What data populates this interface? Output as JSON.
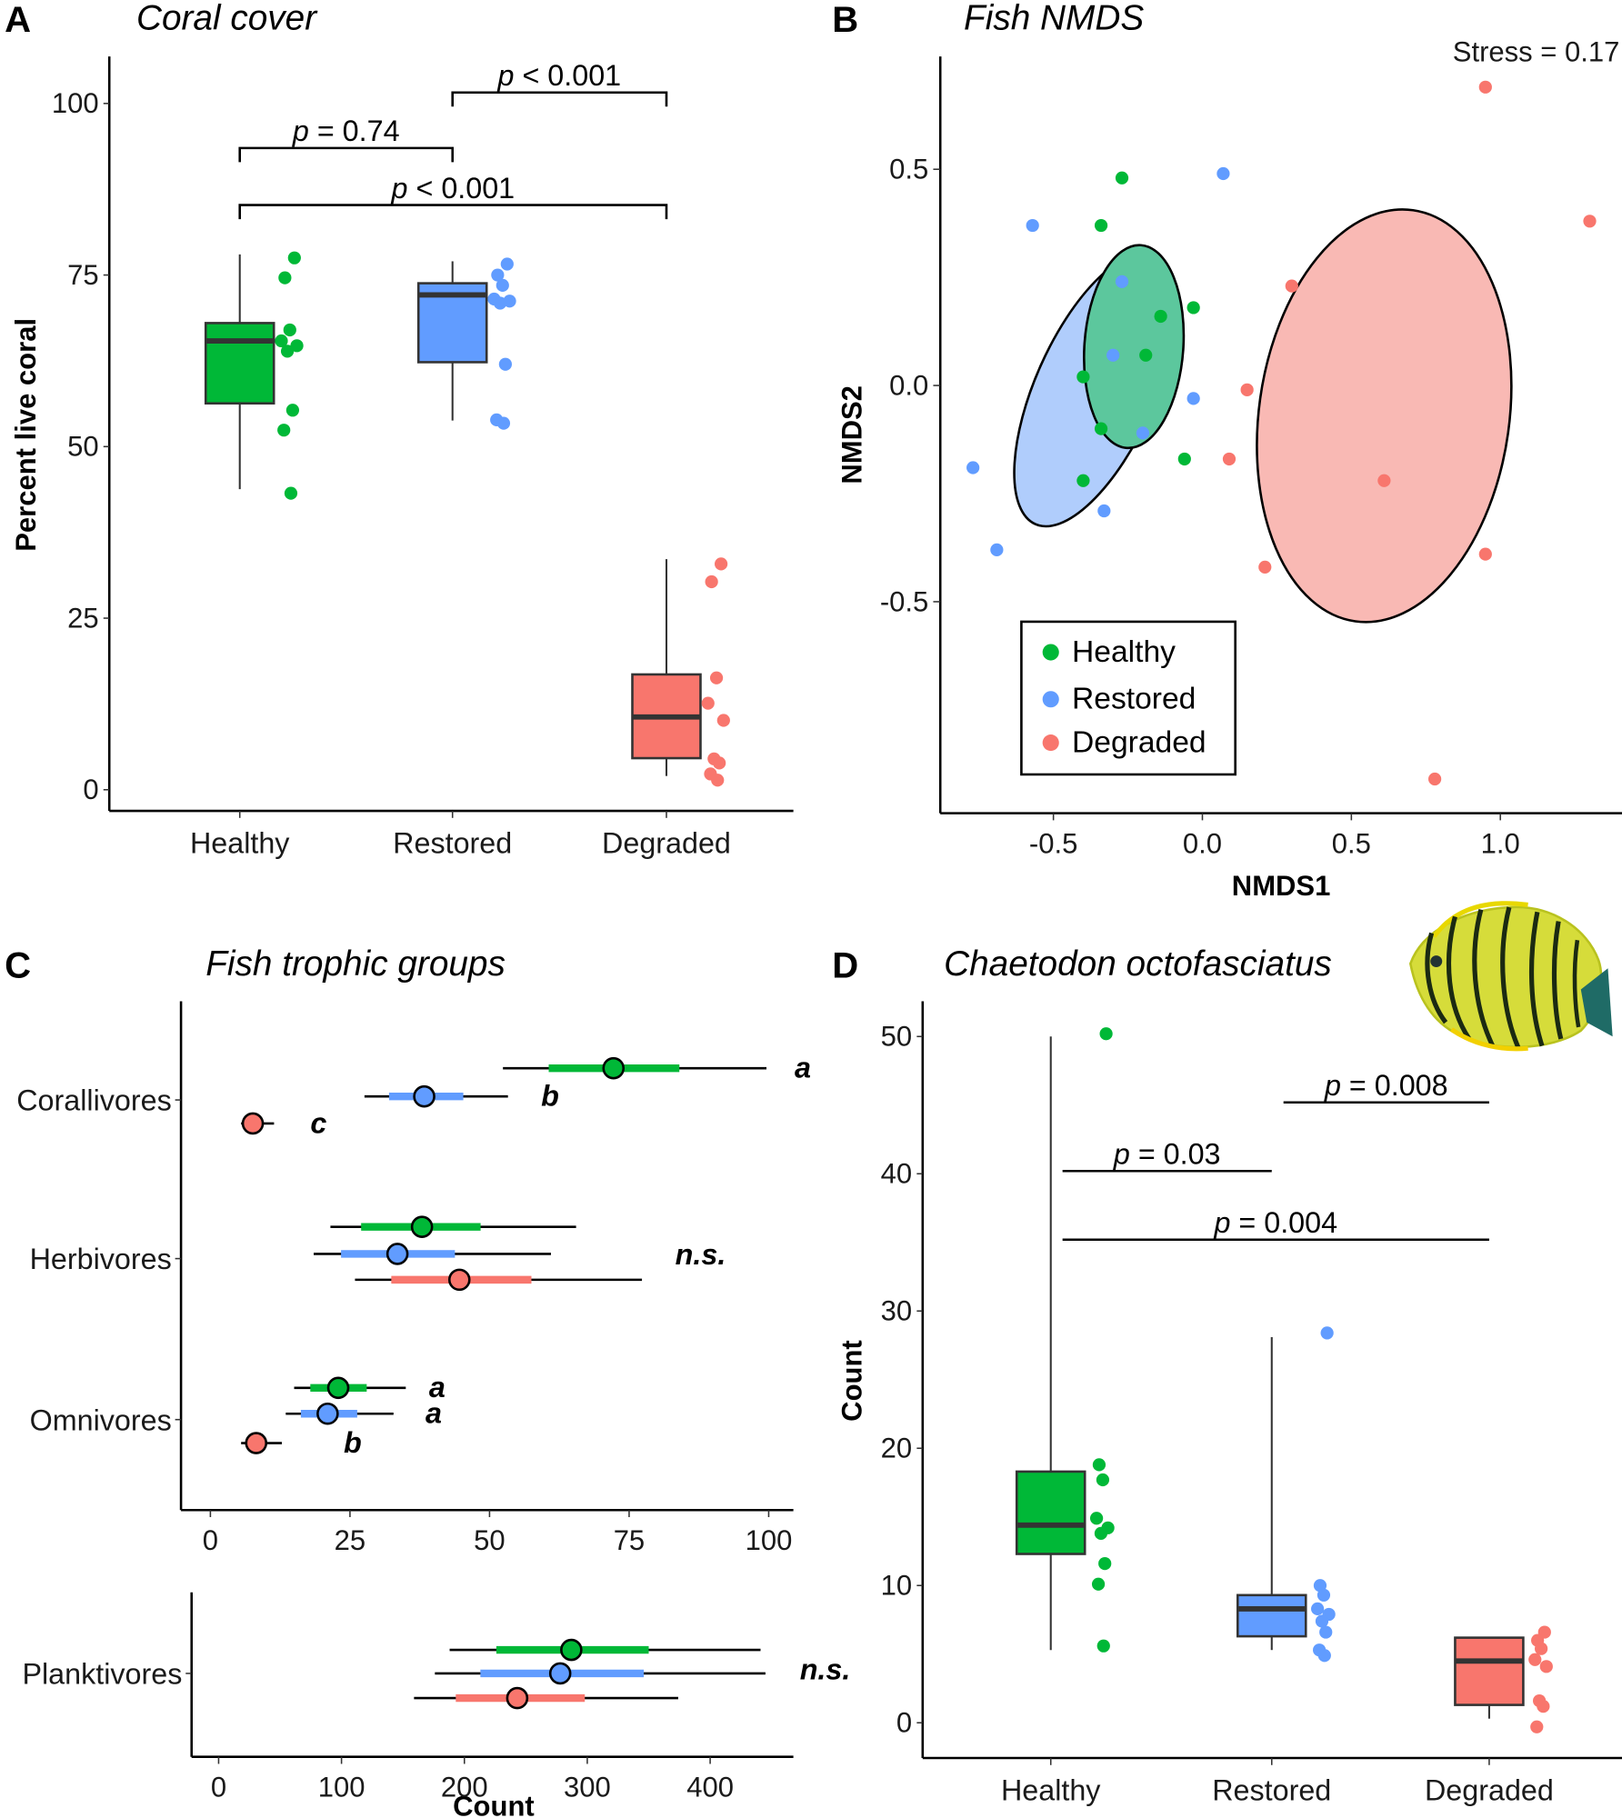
{
  "groups": [
    "Healthy",
    "Restored",
    "Degraded"
  ],
  "colors": {
    "Healthy": "#00b837",
    "Restored": "#619cff",
    "Degraded": "#f8766d",
    "Healthy_ellipse": "#5cc79d",
    "Restored_ellipse": "#b0cdfc",
    "Degraded_ellipse": "#f9b9b4",
    "median": "#333333"
  },
  "chart_data": [
    {
      "panel": "A",
      "type": "box",
      "title": "Coral cover",
      "xlabel": "",
      "ylabel": "Percent live coral",
      "ylim": [
        0,
        100
      ],
      "yticks": [
        0,
        25,
        50,
        75,
        100
      ],
      "categories": [
        "Healthy",
        "Restored",
        "Degraded"
      ],
      "boxes": [
        {
          "group": "Healthy",
          "whisker_low": 43.8,
          "q1": 56.3,
          "median": 65.4,
          "q3": 68,
          "whisker_high": 78,
          "points": [
            77.5,
            74.6,
            67,
            65.4,
            64.7,
            63.9,
            55.3,
            52.4,
            43.2
          ]
        },
        {
          "group": "Restored",
          "whisker_low": 53.8,
          "q1": 62.3,
          "median": 72.1,
          "q3": 73.8,
          "whisker_high": 77,
          "points": [
            76.6,
            75,
            73.5,
            71.5,
            71.2,
            70.9,
            62,
            53.9,
            53.4
          ]
        },
        {
          "group": "Degraded",
          "whisker_low": 2,
          "q1": 4.6,
          "median": 10.6,
          "q3": 16.8,
          "whisker_high": 33.6,
          "points": [
            32.9,
            30.3,
            16.3,
            12.6,
            10.1,
            4.5,
            3.9,
            2.3,
            1.4
          ]
        }
      ],
      "comparisons": [
        {
          "from": "Healthy",
          "to": "Restored",
          "label_p": "p",
          "label_rest": " = 0.74",
          "y": 93.5
        },
        {
          "from": "Restored",
          "to": "Degraded",
          "label_p": "p",
          "label_rest": " < 0.001",
          "y": 101.6
        },
        {
          "from": "Healthy",
          "to": "Degraded",
          "label_p": "p",
          "label_rest": " < 0.001",
          "y": 85.2
        }
      ]
    },
    {
      "panel": "B",
      "type": "scatter",
      "title": "Fish NMDS",
      "xlabel": "NMDS1",
      "ylabel": "NMDS2",
      "xticks": [
        -0.5,
        0.0,
        0.5,
        1.0
      ],
      "xtick_labels": [
        "-0.5",
        "0.0",
        "0.5",
        "1.0"
      ],
      "yticks": [
        -0.5,
        0.0,
        0.5
      ],
      "ytick_labels": [
        "-0.5",
        "0.0",
        "0.5"
      ],
      "annotation": "Stress = 0.17",
      "legend": {
        "position": "bottom-left",
        "entries": [
          "Healthy",
          "Restored",
          "Degraded"
        ]
      },
      "series": [
        {
          "name": "Healthy",
          "points": [
            [
              -0.27,
              0.48
            ],
            [
              -0.34,
              0.37
            ],
            [
              -0.14,
              0.16
            ],
            [
              -0.03,
              0.18
            ],
            [
              -0.19,
              0.07
            ],
            [
              -0.4,
              0.02
            ],
            [
              -0.34,
              -0.1
            ],
            [
              -0.06,
              -0.17
            ],
            [
              -0.4,
              -0.22
            ]
          ],
          "ellipse": {
            "cx": -0.23,
            "cy": 0.09,
            "rx": 0.166,
            "ry": 0.235,
            "angle_deg": 4
          }
        },
        {
          "name": "Restored",
          "points": [
            [
              0.07,
              0.49
            ],
            [
              -0.57,
              0.37
            ],
            [
              -0.27,
              0.24
            ],
            [
              -0.3,
              0.07
            ],
            [
              -0.03,
              -0.03
            ],
            [
              -0.2,
              -0.11
            ],
            [
              -0.77,
              -0.19
            ],
            [
              -0.33,
              -0.29
            ],
            [
              -0.69,
              -0.38
            ]
          ],
          "ellipse": {
            "cx": -0.36,
            "cy": -0.01,
            "rx": 0.2,
            "ry": 0.34,
            "angle_deg": 24
          }
        },
        {
          "name": "Degraded",
          "points": [
            [
              0.95,
              0.69
            ],
            [
              1.3,
              0.38
            ],
            [
              0.3,
              0.23
            ],
            [
              0.15,
              -0.01
            ],
            [
              0.09,
              -0.17
            ],
            [
              0.61,
              -0.22
            ],
            [
              0.95,
              -0.39
            ],
            [
              0.21,
              -0.42
            ],
            [
              0.78,
              -0.91
            ]
          ],
          "ellipse": {
            "cx": 0.61,
            "cy": -0.07,
            "rx": 0.42,
            "ry": 0.48,
            "angle_deg": 8
          }
        }
      ]
    },
    {
      "panel": "C",
      "type": "pointrange",
      "title": "Fish trophic groups",
      "xlabel": "Count",
      "facets": [
        {
          "name": "top",
          "xlim": [
            -5,
            105
          ],
          "xticks": [
            0,
            25,
            50,
            75,
            100
          ],
          "categories": [
            {
              "name": "Corallivores",
              "sig": [
                {
                  "group": "Healthy",
                  "label": "a"
                },
                {
                  "group": "Restored",
                  "label": "b"
                },
                {
                  "group": "Degraded",
                  "label": "c"
                }
              ],
              "values": [
                {
                  "group": "Healthy",
                  "mean": 72.2,
                  "inner": [
                    60.6,
                    84
                  ],
                  "outer": [
                    52.4,
                    99.6
                  ]
                },
                {
                  "group": "Restored",
                  "mean": 38.3,
                  "inner": [
                    32,
                    45.3
                  ],
                  "outer": [
                    27.6,
                    53.3
                  ]
                },
                {
                  "group": "Degraded",
                  "mean": 7.6,
                  "inner": [
                    6,
                    9
                  ],
                  "outer": [
                    5.5,
                    11.4
                  ]
                }
              ]
            },
            {
              "name": "Herbivores",
              "sig_all": "n.s.",
              "values": [
                {
                  "group": "Healthy",
                  "mean": 37.9,
                  "inner": [
                    27,
                    48.4
                  ],
                  "outer": [
                    21.5,
                    65.5
                  ]
                },
                {
                  "group": "Restored",
                  "mean": 33.5,
                  "inner": [
                    23.4,
                    43.8
                  ],
                  "outer": [
                    18.5,
                    61
                  ]
                },
                {
                  "group": "Degraded",
                  "mean": 44.6,
                  "inner": [
                    32.4,
                    57.5
                  ],
                  "outer": [
                    25.9,
                    77.3
                  ]
                }
              ]
            },
            {
              "name": "Omnivores",
              "sig": [
                {
                  "group": "Healthy",
                  "label": "a"
                },
                {
                  "group": "Restored",
                  "label": "a"
                },
                {
                  "group": "Degraded",
                  "label": "b"
                }
              ],
              "values": [
                {
                  "group": "Healthy",
                  "mean": 22.9,
                  "inner": [
                    17.9,
                    28
                  ],
                  "outer": [
                    15,
                    35
                  ]
                },
                {
                  "group": "Restored",
                  "mean": 21,
                  "inner": [
                    16.2,
                    26.3
                  ],
                  "outer": [
                    13.5,
                    32.8
                  ]
                },
                {
                  "group": "Degraded",
                  "mean": 8.2,
                  "inner": [
                    7,
                    9.5
                  ],
                  "outer": [
                    5.5,
                    12.8
                  ]
                }
              ]
            }
          ]
        },
        {
          "name": "bottom",
          "xlim": [
            -20,
            465
          ],
          "xticks": [
            0,
            100,
            200,
            300,
            400
          ],
          "categories": [
            {
              "name": "Planktivores",
              "sig_all": "n.s.",
              "values": [
                {
                  "group": "Healthy",
                  "mean": 287,
                  "inner": [
                    226,
                    350
                  ],
                  "outer": [
                    188,
                    441
                  ]
                },
                {
                  "group": "Restored",
                  "mean": 278,
                  "inner": [
                    213,
                    346
                  ],
                  "outer": [
                    176,
                    445
                  ]
                },
                {
                  "group": "Degraded",
                  "mean": 243,
                  "inner": [
                    193,
                    298
                  ],
                  "outer": [
                    159,
                    374
                  ]
                }
              ]
            }
          ]
        }
      ]
    },
    {
      "panel": "D",
      "type": "box",
      "title": "Chaetodon octofasciatus",
      "xlabel": "",
      "ylabel": "Count",
      "ylim": [
        0,
        50
      ],
      "yticks": [
        0,
        10,
        20,
        30,
        40,
        50
      ],
      "categories": [
        "Healthy",
        "Restored",
        "Degraded"
      ],
      "boxes": [
        {
          "group": "Healthy",
          "whisker_low": 5.3,
          "q1": 12.3,
          "median": 14.4,
          "q3": 18.3,
          "whisker_high": 50,
          "points": [
            50.2,
            18.8,
            17.7,
            14.9,
            14.2,
            13.8,
            11.6,
            10.1,
            5.6
          ]
        },
        {
          "group": "Restored",
          "whisker_low": 5.3,
          "q1": 6.3,
          "median": 8.3,
          "q3": 9.3,
          "whisker_high": 28.1,
          "points": [
            28.4,
            10.0,
            9.3,
            8.3,
            7.9,
            7.4,
            6.6,
            5.3,
            4.9
          ]
        },
        {
          "group": "Degraded",
          "whisker_low": 0.3,
          "q1": 1.3,
          "median": 4.5,
          "q3": 6.2,
          "whisker_high": 6.2,
          "points": [
            6.6,
            6.0,
            5.4,
            4.6,
            4.1,
            1.6,
            1.2,
            -0.3
          ]
        }
      ],
      "comparisons": [
        {
          "from": "Healthy",
          "to": "Restored",
          "label_p": "p",
          "label_rest": " = 0.03",
          "y": 40.2
        },
        {
          "from": "Restored",
          "to": "Degraded",
          "label_p": "p",
          "label_rest": " = 0.008",
          "y": 45.2
        },
        {
          "from": "Healthy",
          "to": "Degraded",
          "label_p": "p",
          "label_rest": " = 0.004",
          "y": 35.2
        }
      ],
      "image": "butterflyfish-illustration"
    }
  ],
  "labels": {
    "A": {
      "letter": "A",
      "title": "Coral cover",
      "ylabel": "Percent live coral"
    },
    "B": {
      "letter": "B",
      "title": "Fish NMDS",
      "xlabel": "NMDS1",
      "ylabel": "NMDS2",
      "stress": "Stress = 0.17",
      "legend": [
        "Healthy",
        "Restored",
        "Degraded"
      ]
    },
    "C": {
      "letter": "C",
      "title": "Fish trophic groups",
      "xlabel": "Count"
    },
    "D": {
      "letter": "D",
      "title": "Chaetodon octofasciatus",
      "ylabel": "Count"
    }
  }
}
